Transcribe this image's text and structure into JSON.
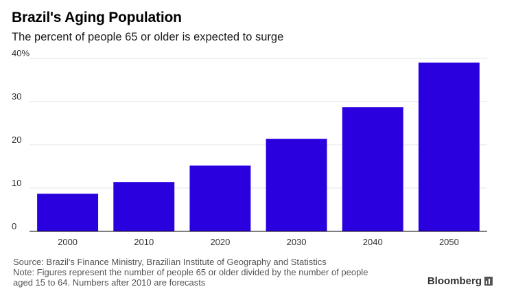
{
  "chart_data": {
    "type": "bar",
    "title": "Brazil's Aging Population",
    "subtitle": "The percent of people 65 or older is expected to surge",
    "categories": [
      "2000",
      "2010",
      "2020",
      "2030",
      "2040",
      "2050"
    ],
    "values": [
      8.7,
      11.4,
      15.2,
      21.4,
      28.7,
      39.0
    ],
    "ylim": [
      0,
      40
    ],
    "yticks": [
      0,
      10,
      20,
      30,
      40
    ],
    "ytick_labels": [
      "0",
      "10",
      "20",
      "30",
      "40%"
    ],
    "grid": true,
    "bar_color": "#2b00de"
  },
  "footer": {
    "source": "Source: Brazil's Finance Ministry, Brazilian Institute of Geography and Statistics",
    "note_line1": "Note: Figures represent the number of people 65 or older divided by the number of people",
    "note_line2": "aged 15 to 64. Numbers after 2010 are forecasts"
  },
  "brand": {
    "name": "Bloomberg",
    "mark_icon": "bloomberg-logo-icon"
  }
}
